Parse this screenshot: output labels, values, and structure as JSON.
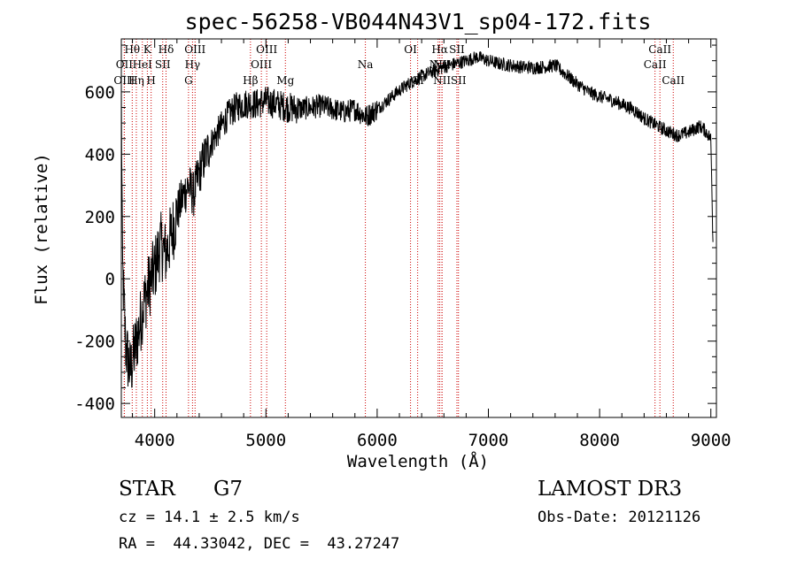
{
  "chart_data": {
    "type": "line",
    "title": "spec-56258-VB044N43V1_sp04-172.fits",
    "xlabel": "Wavelength (Å)",
    "ylabel": "Flux (relative)",
    "xlim": [
      3700,
      9050
    ],
    "ylim": [
      -445,
      770
    ],
    "xticks": [
      4000,
      5000,
      6000,
      7000,
      8000,
      9000
    ],
    "yticks": [
      -400,
      -200,
      0,
      200,
      400,
      600
    ],
    "spectrum_keypoints": [
      [
        3700,
        600
      ],
      [
        3710,
        40
      ],
      [
        3740,
        -220
      ],
      [
        3780,
        -300
      ],
      [
        3820,
        -230
      ],
      [
        3860,
        -160
      ],
      [
        3900,
        -80
      ],
      [
        3950,
        -20
      ],
      [
        4000,
        30
      ],
      [
        4050,
        110
      ],
      [
        4100,
        80
      ],
      [
        4150,
        140
      ],
      [
        4200,
        210
      ],
      [
        4250,
        260
      ],
      [
        4300,
        300
      ],
      [
        4350,
        270
      ],
      [
        4400,
        340
      ],
      [
        4450,
        390
      ],
      [
        4500,
        430
      ],
      [
        4550,
        460
      ],
      [
        4600,
        490
      ],
      [
        4650,
        520
      ],
      [
        4700,
        540
      ],
      [
        4750,
        555
      ],
      [
        4800,
        560
      ],
      [
        4850,
        565
      ],
      [
        4900,
        560
      ],
      [
        4950,
        565
      ],
      [
        5000,
        570
      ],
      [
        5100,
        560
      ],
      [
        5200,
        550
      ],
      [
        5300,
        545
      ],
      [
        5400,
        550
      ],
      [
        5500,
        555
      ],
      [
        5600,
        545
      ],
      [
        5700,
        535
      ],
      [
        5800,
        545
      ],
      [
        5900,
        520
      ],
      [
        6000,
        545
      ],
      [
        6100,
        575
      ],
      [
        6200,
        605
      ],
      [
        6300,
        630
      ],
      [
        6400,
        650
      ],
      [
        6500,
        665
      ],
      [
        6600,
        680
      ],
      [
        6700,
        690
      ],
      [
        6800,
        700
      ],
      [
        6900,
        712
      ],
      [
        7000,
        700
      ],
      [
        7100,
        690
      ],
      [
        7200,
        685
      ],
      [
        7300,
        680
      ],
      [
        7400,
        678
      ],
      [
        7500,
        680
      ],
      [
        7600,
        685
      ],
      [
        7700,
        655
      ],
      [
        7800,
        625
      ],
      [
        7900,
        600
      ],
      [
        8000,
        585
      ],
      [
        8100,
        575
      ],
      [
        8200,
        560
      ],
      [
        8300,
        545
      ],
      [
        8400,
        515
      ],
      [
        8500,
        495
      ],
      [
        8600,
        475
      ],
      [
        8700,
        460
      ],
      [
        8800,
        470
      ],
      [
        8900,
        490
      ],
      [
        8950,
        475
      ],
      [
        9000,
        450
      ],
      [
        9020,
        100
      ]
    ],
    "spectral_lines": [
      {
        "label": "Hθ",
        "wavelength": 3798,
        "row": 1
      },
      {
        "label": "OII",
        "wavelength": 3727,
        "row": 2
      },
      {
        "label": "OIII",
        "wavelength": 3727,
        "row": 3
      },
      {
        "label": "Hη",
        "wavelength": 3835,
        "row": 3
      },
      {
        "label": "HeI",
        "wavelength": 3889,
        "row": 2
      },
      {
        "label": "K",
        "wavelength": 3934,
        "row": 1
      },
      {
        "label": "H",
        "wavelength": 3968,
        "row": 3
      },
      {
        "label": "SII",
        "wavelength": 4072,
        "row": 2
      },
      {
        "label": "Hδ",
        "wavelength": 4102,
        "row": 1
      },
      {
        "label": "OIII",
        "wavelength": 4363,
        "row": 1
      },
      {
        "label": "Hγ",
        "wavelength": 4340,
        "row": 2
      },
      {
        "label": "G",
        "wavelength": 4304,
        "row": 3
      },
      {
        "label": "Hβ",
        "wavelength": 4861,
        "row": 3
      },
      {
        "label": "OIII",
        "wavelength": 4959,
        "row": 2
      },
      {
        "label": "OIII",
        "wavelength": 5007,
        "row": 1
      },
      {
        "label": "Mg",
        "wavelength": 5175,
        "row": 3
      },
      {
        "label": "Na",
        "wavelength": 5894,
        "row": 2
      },
      {
        "label": "OI",
        "wavelength": 6300,
        "row": 1
      },
      {
        "label": "OI",
        "wavelength": 6364,
        "row": 3
      },
      {
        "label": "Hα",
        "wavelength": 6563,
        "row": 1
      },
      {
        "label": "NII",
        "wavelength": 6548,
        "row": 2
      },
      {
        "label": "NII",
        "wavelength": 6583,
        "row": 3
      },
      {
        "label": "SII",
        "wavelength": 6717,
        "row": 1
      },
      {
        "label": "NII",
        "wavelength": 6583,
        "row": 2
      },
      {
        "label": "SII",
        "wavelength": 6731,
        "row": 3
      },
      {
        "label": "CaII",
        "wavelength": 8542,
        "row": 1
      },
      {
        "label": "CaII",
        "wavelength": 8498,
        "row": 2
      },
      {
        "label": "CaII",
        "wavelength": 8662,
        "row": 3
      }
    ]
  },
  "info": {
    "star_type": "STAR",
    "subclass": "G7",
    "cz": "cz = 14.1 ± 2.5 km/s",
    "coords": "RA =  44.33042, DEC =  43.27247",
    "survey": "LAMOST DR3",
    "obs_date": "Obs-Date: 20121126"
  },
  "colors": {
    "line_marker": "#cc0000",
    "spectrum": "#000000"
  }
}
